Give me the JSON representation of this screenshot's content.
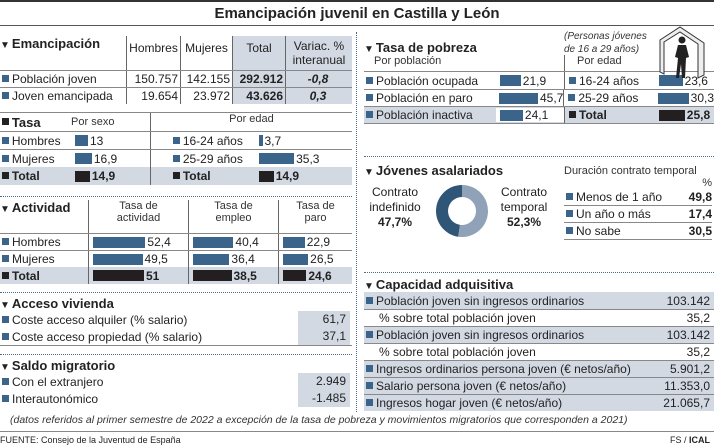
{
  "title": "Emancipación juvenil en Castilla y León",
  "subtitle": "(Personas jóvenes de 16 a 29 años)",
  "colors": {
    "bar": "#3a6489",
    "total_bar": "#231f20",
    "shade": "#d3d9e3"
  },
  "chart_data": {
    "type": "table",
    "emancipacion": {
      "title": "Emancipación",
      "headers": [
        "Hombres",
        "Mujeres",
        "Total",
        "Variac. % interanual"
      ],
      "rows": [
        {
          "label": "Población joven",
          "values": [
            "150.757",
            "142.155",
            "292.912",
            "-0,8"
          ]
        },
        {
          "label": "Joven emancipada",
          "values": [
            "19.654",
            "23.972",
            "43.626",
            "0,3"
          ]
        }
      ]
    },
    "tasa": {
      "title": "Tasa",
      "by_sex_label": "Por sexo",
      "by_age_label": "Por edad",
      "by_sex": [
        {
          "label": "Hombres",
          "value": "13"
        },
        {
          "label": "Mujeres",
          "value": "16,9"
        },
        {
          "label": "Total",
          "value": "14,9"
        }
      ],
      "by_age": [
        {
          "label": "16-24 años",
          "value": "3,7"
        },
        {
          "label": "25-29 años",
          "value": "35,3"
        },
        {
          "label": "Total",
          "value": "14,9"
        }
      ]
    },
    "actividad": {
      "title": "Actividad",
      "headers": [
        "Tasa de actividad",
        "Tasa de empleo",
        "Tasa de paro"
      ],
      "rows": [
        {
          "label": "Hombres",
          "values": [
            "52,4",
            "40,4",
            "22,9"
          ]
        },
        {
          "label": "Mujeres",
          "values": [
            "49,5",
            "36,4",
            "26,5"
          ]
        },
        {
          "label": "Total",
          "values": [
            "51",
            "38,5",
            "24,6"
          ]
        }
      ]
    },
    "vivienda": {
      "title": "Acceso vivienda",
      "rows": [
        {
          "label": "Coste acceso alquiler (% salario)",
          "value": "61,7"
        },
        {
          "label": "Coste acceso propiedad (% salario)",
          "value": "37,1"
        }
      ]
    },
    "migratorio": {
      "title": "Saldo migratorio",
      "rows": [
        {
          "label": "Con el extranjero",
          "value": "2.949"
        },
        {
          "label": "Interautonómico",
          "value": "-1.485"
        }
      ]
    },
    "pobreza": {
      "title": "Tasa de pobreza",
      "by_pop_label": "Por población",
      "by_age_label": "Por edad",
      "by_pop": [
        {
          "label": "Población ocupada",
          "value": "21,9"
        },
        {
          "label": "Población en paro",
          "value": "45,7"
        },
        {
          "label": "Población inactiva",
          "value": "24,1"
        }
      ],
      "by_age": [
        {
          "label": "16-24 años",
          "value": "23,6"
        },
        {
          "label": "25-29 años",
          "value": "30,3"
        },
        {
          "label": "Total",
          "value": "25,8"
        }
      ]
    },
    "asalariados": {
      "title": "Jóvenes asalariados",
      "indefinido": {
        "label1": "Contrato",
        "label2": "indefinido",
        "value": "47,7%",
        "pct": 47.7
      },
      "temporal": {
        "label1": "Contrato",
        "label2": "temporal",
        "value": "52,3%",
        "pct": 52.3
      },
      "duration_title": "Duración contrato temporal",
      "pct_label": "%",
      "duration": [
        {
          "label": "Menos de 1 año",
          "value": "49,8"
        },
        {
          "label": "Un año o más",
          "value": "17,4"
        },
        {
          "label": "No sabe",
          "value": "30,5"
        }
      ]
    },
    "capacidad": {
      "title": "Capacidad adquisitiva",
      "rows": [
        {
          "label": "Población joven sin ingresos ordinarios",
          "value": "103.142",
          "bullet": true,
          "shade": true
        },
        {
          "label": "% sobre total población joven",
          "value": "35,2",
          "bullet": false,
          "shade": false
        },
        {
          "label": "Población joven sin ingresos ordinarios",
          "value": "103.142",
          "bullet": true,
          "shade": true
        },
        {
          "label": "% sobre total población joven",
          "value": "35,2",
          "bullet": false,
          "shade": false
        },
        {
          "label": "Ingresos ordinarios persona joven (€ netos/año)",
          "value": "5.901,2",
          "bullet": true,
          "shade": true
        },
        {
          "label": "Salario persona joven (€ netos/año)",
          "value": "11.353,0",
          "bullet": true,
          "shade": true
        },
        {
          "label": "Ingresos hogar joven (€ netos/año)",
          "value": "21.065,7",
          "bullet": true,
          "shade": true
        }
      ]
    }
  },
  "note": "(datos referidos al primer semestre de 2022 a excepción de la tasa de pobreza y movimientos migratorios que corresponden a 2021)",
  "source": "FUENTE: Consejo de la Juventud de España",
  "credit_fs": "FS / ",
  "credit_ical": "ICAL"
}
